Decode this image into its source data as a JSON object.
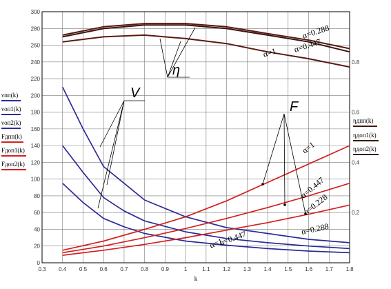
{
  "chart_data": {
    "type": "line",
    "xlabel": "k",
    "xlim": [
      0.3,
      1.8
    ],
    "xticks": [
      "0.3",
      "0.4",
      "0.5",
      "0.6",
      "0.7",
      "0.8",
      "0.9",
      "1",
      "1.1",
      "1.2",
      "1.3",
      "1.4",
      "1.5",
      "1.6",
      "1.7",
      "1.8"
    ],
    "ylim_left": [
      0,
      300
    ],
    "yticks_left": [
      "0",
      "20",
      "40",
      "60",
      "80",
      "100",
      "120",
      "140",
      "160",
      "180",
      "200",
      "220",
      "240",
      "260",
      "280",
      "300"
    ],
    "ylim_right": [
      0,
      1
    ],
    "yticks_right": [
      "0.2",
      "0.4",
      "0.6",
      "0.8"
    ],
    "grid": true,
    "legend_left": [
      {
        "label": "νпп(k)",
        "color": "#2b2b9a"
      },
      {
        "label": "νоп1(k)",
        "color": "#2b2b9a"
      },
      {
        "label": "νоп2(k)",
        "color": "#2b2b9a"
      },
      {
        "label": "Fдпп(k)",
        "color": "#d42020"
      },
      {
        "label": "Fдоп1(k)",
        "color": "#d42020"
      },
      {
        "label": "Fдоп2(k)",
        "color": "#d42020"
      }
    ],
    "legend_right": [
      {
        "label": "ηдпп(k)",
        "color": "#3a1a10"
      },
      {
        "label": "ηдоп1(k)",
        "color": "#3a1a10"
      },
      {
        "label": "ηдоп2(k)",
        "color": "#3a1a10"
      }
    ],
    "series": [
      {
        "group": "v",
        "axis": "left",
        "color": "#2b2b9a",
        "x": [
          0.4,
          0.5,
          0.6,
          0.7,
          0.8,
          1.0,
          1.2,
          1.4,
          1.6,
          1.8
        ],
        "y": [
          210,
          160,
          115,
          95,
          75,
          55,
          42,
          35,
          28,
          24
        ]
      },
      {
        "group": "v",
        "axis": "left",
        "color": "#2b2b9a",
        "x": [
          0.4,
          0.5,
          0.6,
          0.7,
          0.8,
          1.0,
          1.2,
          1.4,
          1.6,
          1.8
        ],
        "y": [
          140,
          108,
          78,
          62,
          50,
          37,
          29,
          24,
          20,
          17
        ]
      },
      {
        "group": "v",
        "axis": "left",
        "color": "#2b2b9a",
        "x": [
          0.4,
          0.5,
          0.6,
          0.7,
          0.8,
          1.0,
          1.2,
          1.4,
          1.6,
          1.8
        ],
        "y": [
          95,
          72,
          53,
          43,
          35,
          26,
          21,
          17,
          14,
          12
        ]
      },
      {
        "group": "F",
        "axis": "left",
        "color": "#d42020",
        "x": [
          0.4,
          0.6,
          0.8,
          1.0,
          1.2,
          1.4,
          1.6,
          1.8
        ],
        "y": [
          15,
          26,
          40,
          55,
          74,
          96,
          118,
          140
        ]
      },
      {
        "group": "F",
        "axis": "left",
        "color": "#d42020",
        "x": [
          0.4,
          0.6,
          0.8,
          1.0,
          1.2,
          1.4,
          1.6,
          1.8
        ],
        "y": [
          12,
          20,
          30,
          41,
          53,
          66,
          80,
          95
        ]
      },
      {
        "group": "F",
        "axis": "left",
        "color": "#d42020",
        "x": [
          0.4,
          0.6,
          0.8,
          1.0,
          1.2,
          1.4,
          1.6,
          1.8
        ],
        "y": [
          9,
          15,
          22,
          30,
          39,
          48,
          58,
          69
        ]
      },
      {
        "group": "eta",
        "axis": "right",
        "color": "#5a1a10",
        "x": [
          0.4,
          0.6,
          0.8,
          1.0,
          1.2,
          1.4,
          1.6,
          1.8
        ],
        "y": [
          0.907,
          0.94,
          0.953,
          0.953,
          0.94,
          0.913,
          0.887,
          0.853
        ]
      },
      {
        "group": "eta",
        "axis": "right",
        "color": "#3a1410",
        "x": [
          0.4,
          0.6,
          0.8,
          1.0,
          1.2,
          1.4,
          1.6,
          1.8
        ],
        "y": [
          0.9,
          0.933,
          0.947,
          0.947,
          0.933,
          0.907,
          0.88,
          0.84
        ]
      },
      {
        "group": "eta",
        "axis": "right",
        "color": "#5a1a10",
        "x": [
          0.4,
          0.6,
          0.8,
          1.0,
          1.2,
          1.4,
          1.6,
          1.8
        ],
        "y": [
          0.88,
          0.9,
          0.907,
          0.893,
          0.873,
          0.84,
          0.813,
          0.78
        ]
      }
    ],
    "annotations": {
      "eta_symbol": "η",
      "v_symbol": "V",
      "f_symbol": "F",
      "alpha_labels": [
        "α=0.288",
        "α=0.447",
        "α=1",
        "α=1",
        "α=0.447",
        "α=0.228",
        "α=0.288",
        "α=0.447",
        "α=1"
      ]
    }
  }
}
